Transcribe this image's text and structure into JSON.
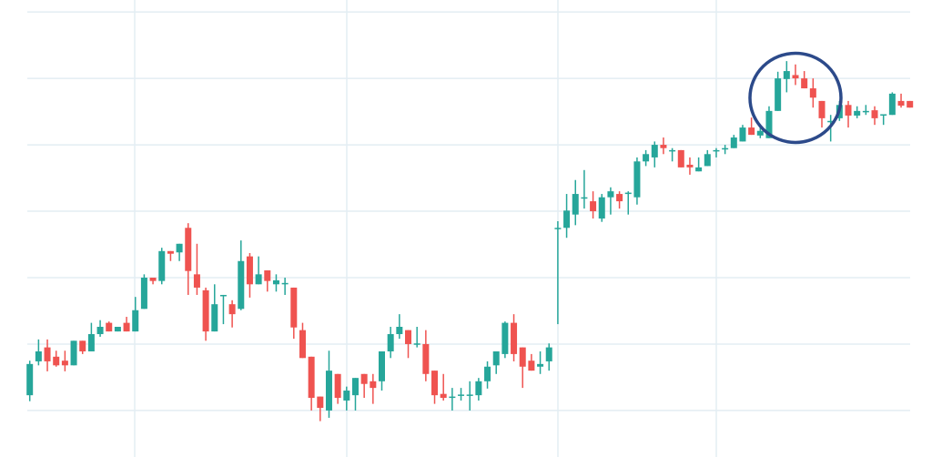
{
  "chart_data": {
    "type": "candlestick",
    "title": "",
    "xlabel": "",
    "ylabel": "",
    "ylim": [
      93.0,
      161.8
    ],
    "grid": true,
    "horizontal_gridlines": [
      100,
      110,
      120,
      130,
      140,
      150,
      160
    ],
    "colors": {
      "up": "#26a69a",
      "down": "#ef5350",
      "grid": "#e3edf3",
      "annotation": "#2c4a8a"
    },
    "annotation": {
      "shape": "circle",
      "around_candles": [
        84,
        90
      ]
    },
    "candle_fields": [
      "open",
      "high",
      "low",
      "close"
    ],
    "candles": [
      [
        102.3,
        107.5,
        101.4,
        107.0
      ],
      [
        107.4,
        110.7,
        106.8,
        108.9
      ],
      [
        109.5,
        110.7,
        105.9,
        107.4
      ],
      [
        108.1,
        109.0,
        106.6,
        106.8
      ],
      [
        107.5,
        109.0,
        105.9,
        106.8
      ],
      [
        106.8,
        110.5,
        106.8,
        110.5
      ],
      [
        110.5,
        110.5,
        108.5,
        108.9
      ],
      [
        108.9,
        113.2,
        108.9,
        111.5
      ],
      [
        111.5,
        113.6,
        111.1,
        112.6
      ],
      [
        113.2,
        113.4,
        111.9,
        111.9
      ],
      [
        111.9,
        112.6,
        111.9,
        112.6
      ],
      [
        113.2,
        114.1,
        111.9,
        111.9
      ],
      [
        111.9,
        117.1,
        111.9,
        115.1
      ],
      [
        115.3,
        120.5,
        115.3,
        120.0
      ],
      [
        120.0,
        120.0,
        119.0,
        119.5
      ],
      [
        119.5,
        124.5,
        119.0,
        124.0
      ],
      [
        124.0,
        124.0,
        122.5,
        123.6
      ],
      [
        123.8,
        125.1,
        122.5,
        125.1
      ],
      [
        127.5,
        128.2,
        117.4,
        121.0
      ],
      [
        120.5,
        125.1,
        117.4,
        118.5
      ],
      [
        118.1,
        118.5,
        110.5,
        111.9
      ],
      [
        111.9,
        119.0,
        111.9,
        116.0
      ],
      [
        117.3,
        117.4,
        113.0,
        117.4
      ],
      [
        116.0,
        116.6,
        112.5,
        114.5
      ],
      [
        115.3,
        125.6,
        115.1,
        122.5
      ],
      [
        123.2,
        123.7,
        117.0,
        119.0
      ],
      [
        119.0,
        123.2,
        119.0,
        120.5
      ],
      [
        121.1,
        121.1,
        117.9,
        119.5
      ],
      [
        119.0,
        120.5,
        117.9,
        119.6
      ],
      [
        119.1,
        120.0,
        117.4,
        119.2
      ],
      [
        118.5,
        118.5,
        110.8,
        112.5
      ],
      [
        112.1,
        113.2,
        107.9,
        107.9
      ],
      [
        108.1,
        108.1,
        100.0,
        101.9
      ],
      [
        102.1,
        102.1,
        98.4,
        100.4
      ],
      [
        100.0,
        109.0,
        98.9,
        106.0
      ],
      [
        105.5,
        105.5,
        101.0,
        101.9
      ],
      [
        101.5,
        103.6,
        100.0,
        103.0
      ],
      [
        102.3,
        104.9,
        100.0,
        104.9
      ],
      [
        105.5,
        105.5,
        101.9,
        104.0
      ],
      [
        104.4,
        105.5,
        101.0,
        103.4
      ],
      [
        104.4,
        108.9,
        103.0,
        108.9
      ],
      [
        108.9,
        112.6,
        107.9,
        111.5
      ],
      [
        111.5,
        114.5,
        110.8,
        112.6
      ],
      [
        112.1,
        112.1,
        107.9,
        110.0
      ],
      [
        110.0,
        112.6,
        109.5,
        110.1
      ],
      [
        110.0,
        112.1,
        104.4,
        105.5
      ],
      [
        106.0,
        106.0,
        101.0,
        102.3
      ],
      [
        102.5,
        105.5,
        101.5,
        101.9
      ],
      [
        102.0,
        103.4,
        100.0,
        102.1
      ],
      [
        102.3,
        103.4,
        101.5,
        102.4
      ],
      [
        102.3,
        104.4,
        100.0,
        102.4
      ],
      [
        102.3,
        104.9,
        101.5,
        104.4
      ],
      [
        104.4,
        107.4,
        103.3,
        106.6
      ],
      [
        106.8,
        108.9,
        105.5,
        108.9
      ],
      [
        108.5,
        113.4,
        107.9,
        113.2
      ],
      [
        113.2,
        114.5,
        107.4,
        108.5
      ],
      [
        109.5,
        109.5,
        103.4,
        106.6
      ],
      [
        107.5,
        108.5,
        106.0,
        106.0
      ],
      [
        106.6,
        108.9,
        105.5,
        107.0
      ],
      [
        107.4,
        110.1,
        106.0,
        109.5
      ],
      [
        127.4,
        128.5,
        113.0,
        127.5
      ],
      [
        127.5,
        132.6,
        126.0,
        130.1
      ],
      [
        129.5,
        134.7,
        127.9,
        132.6
      ],
      [
        132.0,
        136.2,
        130.4,
        132.1
      ],
      [
        131.5,
        133.0,
        128.9,
        130.0
      ],
      [
        128.9,
        132.6,
        128.4,
        132.1
      ],
      [
        132.1,
        133.6,
        129.5,
        133.0
      ],
      [
        132.6,
        133.0,
        130.4,
        131.5
      ],
      [
        132.7,
        133.0,
        129.5,
        132.8
      ],
      [
        132.1,
        138.1,
        131.0,
        137.5
      ],
      [
        137.5,
        139.2,
        136.8,
        138.6
      ],
      [
        138.1,
        140.5,
        136.6,
        140.0
      ],
      [
        140.0,
        141.1,
        138.6,
        139.5
      ],
      [
        139.1,
        139.5,
        137.5,
        139.2
      ],
      [
        139.2,
        139.2,
        136.6,
        136.6
      ],
      [
        137.0,
        138.1,
        135.5,
        136.6
      ],
      [
        136.0,
        138.1,
        136.0,
        136.6
      ],
      [
        136.8,
        139.2,
        136.8,
        138.6
      ],
      [
        139.1,
        139.5,
        138.1,
        139.2
      ],
      [
        139.4,
        140.0,
        138.6,
        139.5
      ],
      [
        139.5,
        141.5,
        139.5,
        141.1
      ],
      [
        140.5,
        143.0,
        140.5,
        142.6
      ],
      [
        142.6,
        144.1,
        141.5,
        141.5
      ],
      [
        141.4,
        143.0,
        141.0,
        142.1
      ],
      [
        141.0,
        145.8,
        141.0,
        145.1
      ],
      [
        145.1,
        151.0,
        145.1,
        150.0
      ],
      [
        149.9,
        152.6,
        147.9,
        151.1
      ],
      [
        150.5,
        152.1,
        149.0,
        150.0
      ],
      [
        150.0,
        151.1,
        148.5,
        148.5
      ],
      [
        148.5,
        150.0,
        145.6,
        147.1
      ],
      [
        146.6,
        146.6,
        142.6,
        144.0
      ],
      [
        143.5,
        144.5,
        140.5,
        143.6
      ],
      [
        144.0,
        146.6,
        143.6,
        146.0
      ],
      [
        146.0,
        146.6,
        142.6,
        144.4
      ],
      [
        144.4,
        145.8,
        144.0,
        145.1
      ],
      [
        145.0,
        146.0,
        144.5,
        145.1
      ],
      [
        145.2,
        145.8,
        143.0,
        144.0
      ],
      [
        144.5,
        144.6,
        143.0,
        144.6
      ],
      [
        144.5,
        147.9,
        144.5,
        147.7
      ],
      [
        146.6,
        147.7,
        145.6,
        145.9
      ],
      [
        146.6,
        146.6,
        145.6,
        145.6
      ]
    ]
  }
}
